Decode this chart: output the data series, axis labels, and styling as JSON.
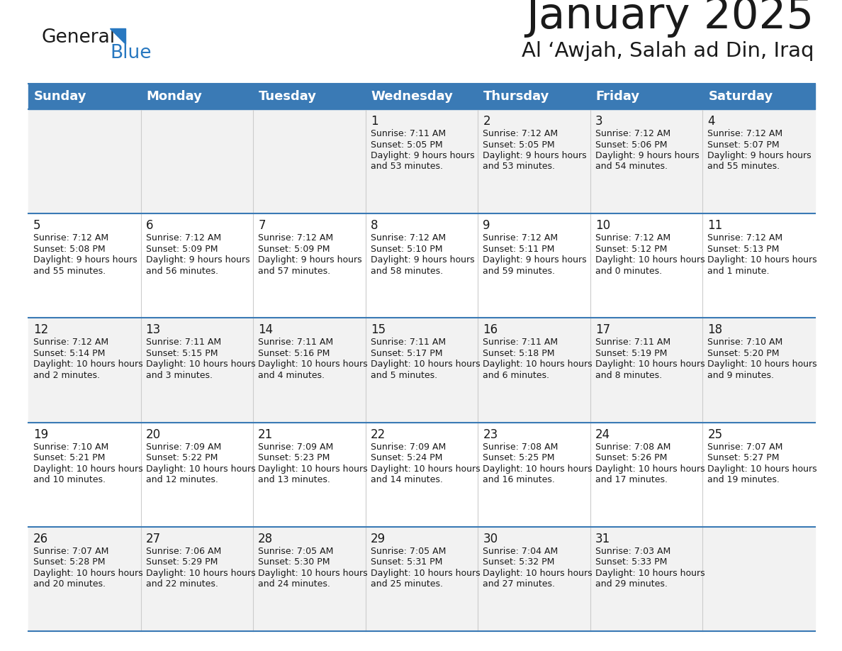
{
  "title": "January 2025",
  "subtitle": "Al ‘Awjah, Salah ad Din, Iraq",
  "header_bg": "#3a7ab5",
  "header_text": "#ffffff",
  "row_bg_odd": "#f2f2f2",
  "row_bg_even": "#ffffff",
  "separator_color": "#3a7ab5",
  "day_headers": [
    "Sunday",
    "Monday",
    "Tuesday",
    "Wednesday",
    "Thursday",
    "Friday",
    "Saturday"
  ],
  "calendar_data": [
    [
      {
        "day": null
      },
      {
        "day": null
      },
      {
        "day": null
      },
      {
        "day": 1,
        "sunrise": "7:11 AM",
        "sunset": "5:05 PM",
        "daylight": "9 hours and 53 minutes."
      },
      {
        "day": 2,
        "sunrise": "7:12 AM",
        "sunset": "5:05 PM",
        "daylight": "9 hours and 53 minutes."
      },
      {
        "day": 3,
        "sunrise": "7:12 AM",
        "sunset": "5:06 PM",
        "daylight": "9 hours and 54 minutes."
      },
      {
        "day": 4,
        "sunrise": "7:12 AM",
        "sunset": "5:07 PM",
        "daylight": "9 hours and 55 minutes."
      }
    ],
    [
      {
        "day": 5,
        "sunrise": "7:12 AM",
        "sunset": "5:08 PM",
        "daylight": "9 hours and 55 minutes."
      },
      {
        "day": 6,
        "sunrise": "7:12 AM",
        "sunset": "5:09 PM",
        "daylight": "9 hours and 56 minutes."
      },
      {
        "day": 7,
        "sunrise": "7:12 AM",
        "sunset": "5:09 PM",
        "daylight": "9 hours and 57 minutes."
      },
      {
        "day": 8,
        "sunrise": "7:12 AM",
        "sunset": "5:10 PM",
        "daylight": "9 hours and 58 minutes."
      },
      {
        "day": 9,
        "sunrise": "7:12 AM",
        "sunset": "5:11 PM",
        "daylight": "9 hours and 59 minutes."
      },
      {
        "day": 10,
        "sunrise": "7:12 AM",
        "sunset": "5:12 PM",
        "daylight": "10 hours and 0 minutes."
      },
      {
        "day": 11,
        "sunrise": "7:12 AM",
        "sunset": "5:13 PM",
        "daylight": "10 hours and 1 minute."
      }
    ],
    [
      {
        "day": 12,
        "sunrise": "7:12 AM",
        "sunset": "5:14 PM",
        "daylight": "10 hours and 2 minutes."
      },
      {
        "day": 13,
        "sunrise": "7:11 AM",
        "sunset": "5:15 PM",
        "daylight": "10 hours and 3 minutes."
      },
      {
        "day": 14,
        "sunrise": "7:11 AM",
        "sunset": "5:16 PM",
        "daylight": "10 hours and 4 minutes."
      },
      {
        "day": 15,
        "sunrise": "7:11 AM",
        "sunset": "5:17 PM",
        "daylight": "10 hours and 5 minutes."
      },
      {
        "day": 16,
        "sunrise": "7:11 AM",
        "sunset": "5:18 PM",
        "daylight": "10 hours and 6 minutes."
      },
      {
        "day": 17,
        "sunrise": "7:11 AM",
        "sunset": "5:19 PM",
        "daylight": "10 hours and 8 minutes."
      },
      {
        "day": 18,
        "sunrise": "7:10 AM",
        "sunset": "5:20 PM",
        "daylight": "10 hours and 9 minutes."
      }
    ],
    [
      {
        "day": 19,
        "sunrise": "7:10 AM",
        "sunset": "5:21 PM",
        "daylight": "10 hours and 10 minutes."
      },
      {
        "day": 20,
        "sunrise": "7:09 AM",
        "sunset": "5:22 PM",
        "daylight": "10 hours and 12 minutes."
      },
      {
        "day": 21,
        "sunrise": "7:09 AM",
        "sunset": "5:23 PM",
        "daylight": "10 hours and 13 minutes."
      },
      {
        "day": 22,
        "sunrise": "7:09 AM",
        "sunset": "5:24 PM",
        "daylight": "10 hours and 14 minutes."
      },
      {
        "day": 23,
        "sunrise": "7:08 AM",
        "sunset": "5:25 PM",
        "daylight": "10 hours and 16 minutes."
      },
      {
        "day": 24,
        "sunrise": "7:08 AM",
        "sunset": "5:26 PM",
        "daylight": "10 hours and 17 minutes."
      },
      {
        "day": 25,
        "sunrise": "7:07 AM",
        "sunset": "5:27 PM",
        "daylight": "10 hours and 19 minutes."
      }
    ],
    [
      {
        "day": 26,
        "sunrise": "7:07 AM",
        "sunset": "5:28 PM",
        "daylight": "10 hours and 20 minutes."
      },
      {
        "day": 27,
        "sunrise": "7:06 AM",
        "sunset": "5:29 PM",
        "daylight": "10 hours and 22 minutes."
      },
      {
        "day": 28,
        "sunrise": "7:05 AM",
        "sunset": "5:30 PM",
        "daylight": "10 hours and 24 minutes."
      },
      {
        "day": 29,
        "sunrise": "7:05 AM",
        "sunset": "5:31 PM",
        "daylight": "10 hours and 25 minutes."
      },
      {
        "day": 30,
        "sunrise": "7:04 AM",
        "sunset": "5:32 PM",
        "daylight": "10 hours and 27 minutes."
      },
      {
        "day": 31,
        "sunrise": "7:03 AM",
        "sunset": "5:33 PM",
        "daylight": "10 hours and 29 minutes."
      },
      {
        "day": null
      }
    ]
  ]
}
